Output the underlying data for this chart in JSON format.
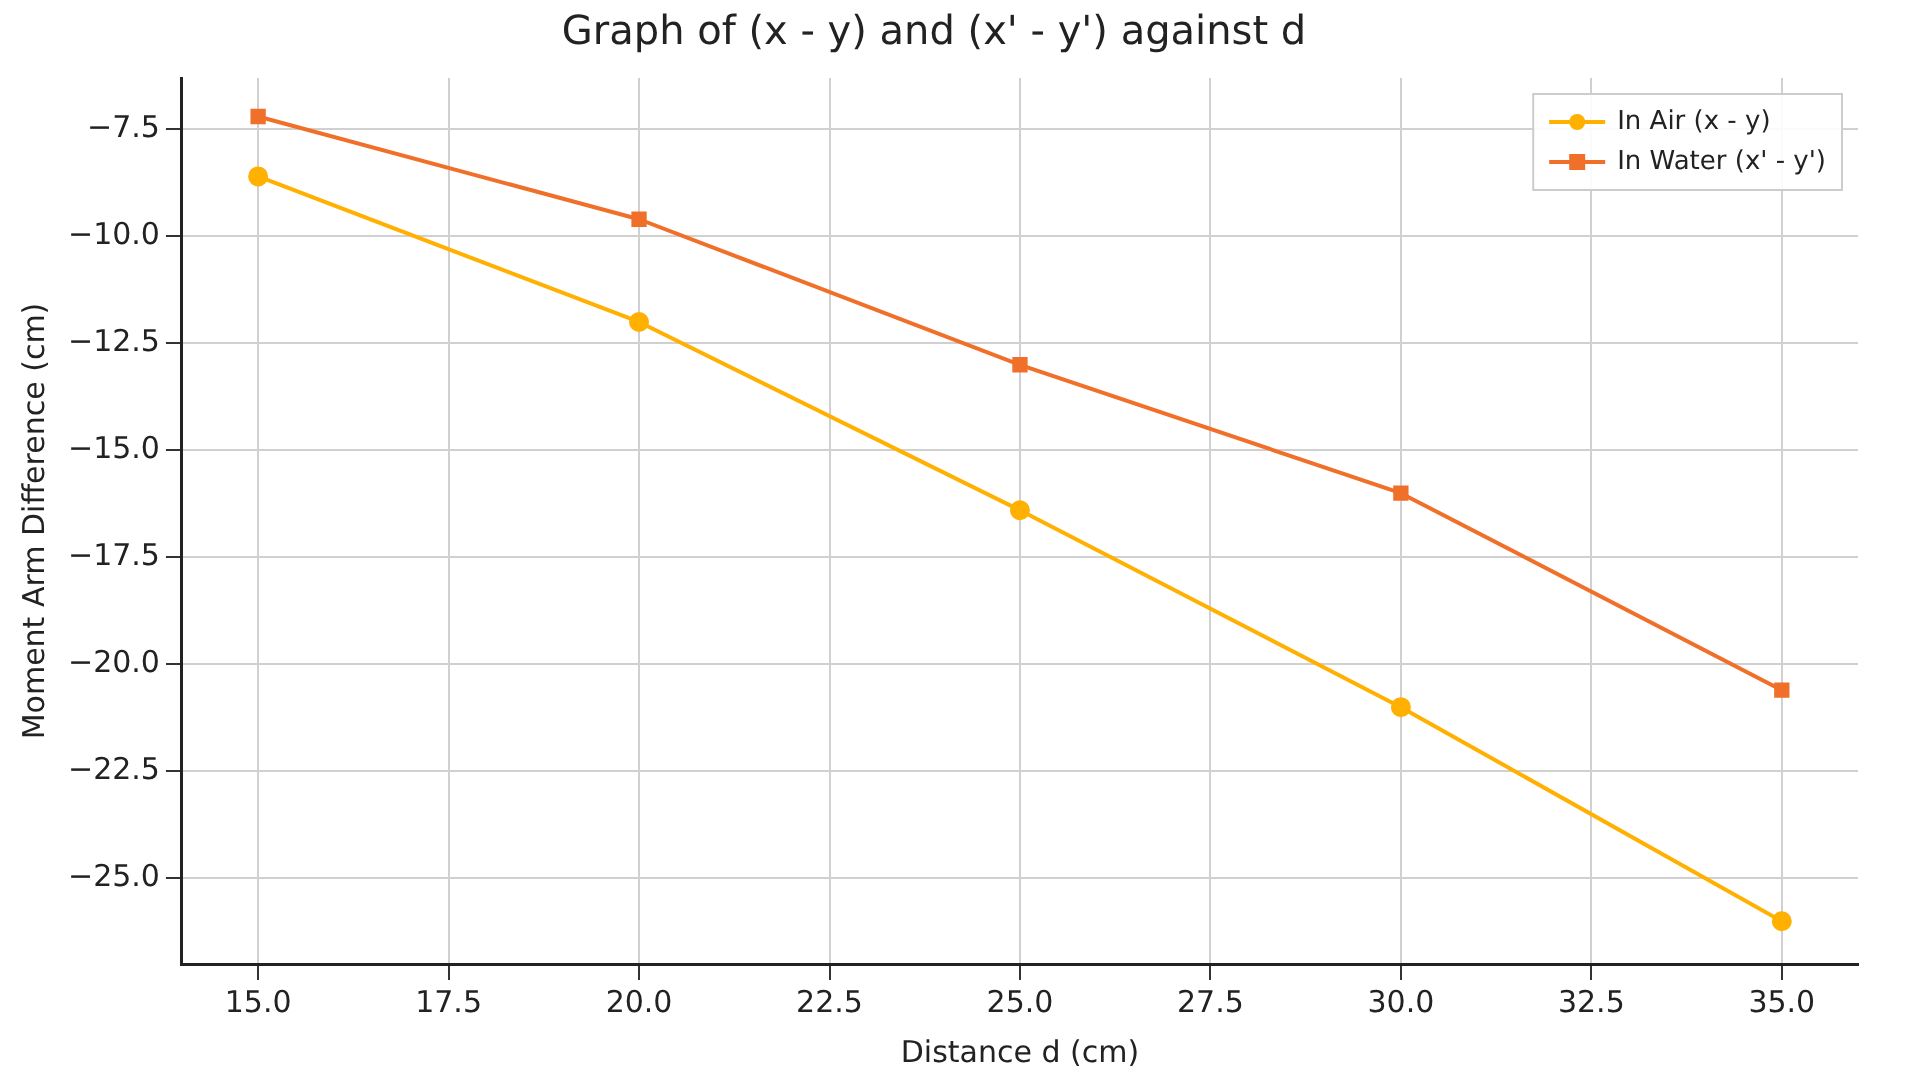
{
  "chart_data": {
    "type": "line",
    "title": "Graph of (x - y) and (x' - y') against d",
    "xlabel": "Distance d (cm)",
    "ylabel": "Moment Arm Difference (cm)",
    "x": [
      15,
      20,
      25,
      30,
      35
    ],
    "series": [
      {
        "name": "In Air (x - y)",
        "color": "#ffb000",
        "marker": "circle",
        "values": [
          -8.6,
          -12,
          -16.4,
          -21,
          -26
        ]
      },
      {
        "name": "In Water (x' - y')",
        "color": "#f0702a",
        "marker": "square",
        "values": [
          -7.2,
          -9.6,
          -13,
          -16,
          -20.6
        ]
      }
    ],
    "xlim": [
      14,
      36
    ],
    "xticks": [
      {
        "value": 15,
        "label": "15.0"
      },
      {
        "value": 17.5,
        "label": "17.5"
      },
      {
        "value": 20,
        "label": "20.0"
      },
      {
        "value": 22.5,
        "label": "22.5"
      },
      {
        "value": 25,
        "label": "25.0"
      },
      {
        "value": 27.5,
        "label": "27.5"
      },
      {
        "value": 30,
        "label": "30.0"
      },
      {
        "value": 32.5,
        "label": "32.5"
      },
      {
        "value": 35,
        "label": "35.0"
      }
    ],
    "ylim": [
      -27,
      -6.3
    ],
    "yticks": [
      {
        "value": -25,
        "label": "−25.0"
      },
      {
        "value": -22.5,
        "label": "−22.5"
      },
      {
        "value": -20,
        "label": "−20.0"
      },
      {
        "value": -17.5,
        "label": "−17.5"
      },
      {
        "value": -15,
        "label": "−15.0"
      },
      {
        "value": -12.5,
        "label": "−12.5"
      },
      {
        "value": -10,
        "label": "−10.0"
      },
      {
        "value": -7.5,
        "label": "−7.5"
      }
    ],
    "grid": true,
    "legend": "top right",
    "line_style": "solid"
  }
}
